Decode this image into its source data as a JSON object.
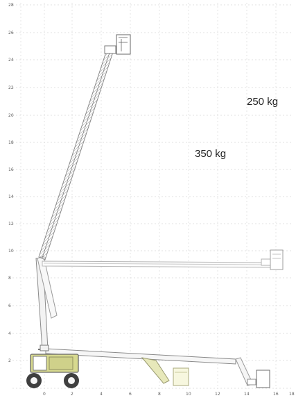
{
  "axes": {
    "y_ticks": [
      "28",
      "26",
      "24",
      "22",
      "20",
      "18",
      "16",
      "14",
      "12",
      "10",
      "8",
      "6",
      "4",
      "2"
    ],
    "x_ticks": [
      "0",
      "2",
      "4",
      "6",
      "8",
      "10",
      "12",
      "14",
      "16",
      "18"
    ]
  },
  "labels": {
    "load_250": "250 kg",
    "load_350": "350 kg"
  },
  "colors": {
    "boom_outline": "#8a8a8a",
    "boom_ghost": "#b6b6b6",
    "chassis_accent": "#d7d98f",
    "tire": "#3f3f3f",
    "grid": "#d9d9d9"
  }
}
